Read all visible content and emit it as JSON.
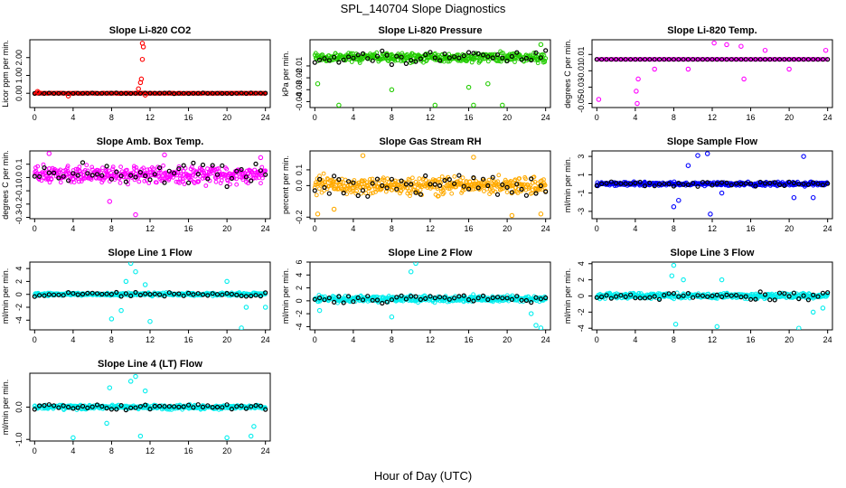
{
  "figure": {
    "title": "SPL_140704  Slope Diagnostics",
    "xlabel": "Hour of Day (UTC)"
  },
  "colors": {
    "overlay": "#000000",
    "red": "#ff0000",
    "green": "#22cc00",
    "magenta": "#ff00ff",
    "orange": "#ffaa00",
    "blue": "#0000ff",
    "cyan": "#00eeee"
  },
  "chart_data": [
    {
      "type": "scatter",
      "title": "Slope Li-820 CO2",
      "ylabel": "Licor ppm per min.",
      "color": "#ff0000",
      "xlim": [
        -0.5,
        24.5
      ],
      "ylim": [
        -0.8,
        3.0
      ],
      "xticks": [
        0,
        4,
        8,
        12,
        16,
        20,
        24
      ],
      "yticks": [
        0,
        1,
        2
      ],
      "ytick_labels": [
        "0.00",
        "1.00",
        "2.00"
      ],
      "baseline": 0.0,
      "spread": 0.02,
      "outliers": [
        [
          0.3,
          0.1
        ],
        [
          0.4,
          0.05
        ],
        [
          3.5,
          -0.15
        ],
        [
          10.8,
          0.25
        ],
        [
          11.0,
          0.6
        ],
        [
          11.1,
          0.8
        ],
        [
          11.2,
          1.9
        ],
        [
          11.2,
          2.8
        ],
        [
          11.3,
          2.6
        ],
        [
          11.5,
          -0.1
        ]
      ]
    },
    {
      "type": "scatter",
      "title": "Slope Li-820 Pressure",
      "ylabel": "kPa per min.",
      "color": "#22cc00",
      "xlim": [
        -0.5,
        24.5
      ],
      "ylim": [
        -0.045,
        0.012
      ],
      "xticks": [
        0,
        4,
        8,
        12,
        16,
        20,
        24
      ],
      "yticks": [
        -0.04,
        -0.03,
        -0.02,
        -0.01
      ],
      "ytick_labels": [
        "-0.04",
        "-0.03",
        "-0.02",
        "-0.01"
      ],
      "baseline": -0.003,
      "spread": 0.006,
      "outliers": [
        [
          0.3,
          -0.025
        ],
        [
          2.5,
          -0.043
        ],
        [
          8.0,
          -0.03
        ],
        [
          12.5,
          -0.043
        ],
        [
          16.5,
          -0.043
        ],
        [
          19.5,
          -0.043
        ],
        [
          23.5,
          0.008
        ],
        [
          16,
          -0.028
        ],
        [
          18,
          -0.025
        ]
      ]
    },
    {
      "type": "scatter",
      "title": "Slope Li-820 Temp.",
      "ylabel": "degrees C per min.",
      "color": "#ff00ff",
      "xlim": [
        -0.5,
        24.5
      ],
      "ylim": [
        -0.055,
        0.028
      ],
      "xticks": [
        0,
        4,
        8,
        12,
        16,
        20,
        24
      ],
      "yticks": [
        -0.05,
        -0.03,
        -0.01,
        0.01
      ],
      "ytick_labels": [
        "-0.05",
        "-0.03",
        "-0.01",
        "0.01"
      ],
      "baseline": 0.004,
      "spread": 0.0,
      "outliers": [
        [
          0.2,
          -0.045
        ],
        [
          4.1,
          -0.035
        ],
        [
          4.2,
          -0.05
        ],
        [
          4.3,
          -0.02
        ],
        [
          12.2,
          0.024
        ],
        [
          13.5,
          0.022
        ],
        [
          15.0,
          0.02
        ],
        [
          15.3,
          -0.02
        ],
        [
          17.5,
          0.015
        ],
        [
          20.0,
          -0.008
        ],
        [
          23.8,
          0.015
        ],
        [
          9.5,
          -0.008
        ],
        [
          6.0,
          -0.008
        ]
      ]
    },
    {
      "type": "scatter",
      "title": "Slope Amb. Box Temp.",
      "ylabel": "degrees C per min.",
      "color": "#ff00ff",
      "xlim": [
        -0.5,
        24.5
      ],
      "ylim": [
        -0.31,
        0.2
      ],
      "xticks": [
        0,
        4,
        8,
        12,
        16,
        20,
        24
      ],
      "yticks": [
        -0.3,
        -0.2,
        -0.1,
        0.0,
        0.1
      ],
      "ytick_labels": [
        "-0.3",
        "-0.2",
        "-0.1",
        "0.0",
        "0.1"
      ],
      "baseline": 0.02,
      "spread": 0.09,
      "outliers": [
        [
          10.5,
          -0.28
        ],
        [
          7.8,
          -0.18
        ],
        [
          1.5,
          0.18
        ],
        [
          13.5,
          0.17
        ],
        [
          23.5,
          0.15
        ]
      ]
    },
    {
      "type": "scatter",
      "title": "Slope Gas Stream RH",
      "ylabel": "percent per min.",
      "color": "#ffaa00",
      "xlim": [
        -0.5,
        24.5
      ],
      "ylim": [
        -0.21,
        0.22
      ],
      "xticks": [
        0,
        4,
        8,
        12,
        16,
        20,
        24
      ],
      "yticks": [
        -0.2,
        0.0,
        0.1
      ],
      "ytick_labels": [
        "-0.2",
        "0.0",
        "0.1"
      ],
      "baseline": 0.0,
      "spread": 0.08,
      "outliers": [
        [
          0.3,
          -0.18
        ],
        [
          2.0,
          -0.15
        ],
        [
          5.0,
          0.19
        ],
        [
          16.5,
          0.18
        ],
        [
          20.5,
          -0.19
        ],
        [
          23.5,
          -0.18
        ]
      ]
    },
    {
      "type": "scatter",
      "title": "Slope Sample Flow",
      "ylabel": "ml/min per min.",
      "color": "#0000ff",
      "xlim": [
        -0.5,
        24.5
      ],
      "ylim": [
        -3.8,
        3.6
      ],
      "xticks": [
        0,
        4,
        8,
        12,
        16,
        20,
        24
      ],
      "yticks": [
        -3,
        -1,
        1,
        3
      ],
      "ytick_labels": [
        "-3",
        "-1",
        "1",
        "3"
      ],
      "baseline": 0.0,
      "spread": 0.3,
      "outliers": [
        [
          10.5,
          3.1
        ],
        [
          11.5,
          3.3
        ],
        [
          8.5,
          -1.8
        ],
        [
          11.8,
          -3.3
        ],
        [
          9.5,
          2.0
        ],
        [
          8.0,
          -2.5
        ],
        [
          21.5,
          3.0
        ],
        [
          20.5,
          -1.5
        ],
        [
          22.5,
          -1.5
        ],
        [
          13.0,
          -1.0
        ]
      ]
    },
    {
      "type": "scatter",
      "title": "Slope Line 1 Flow",
      "ylabel": "ml/min per min.",
      "color": "#00eeee",
      "xlim": [
        -0.5,
        24.5
      ],
      "ylim": [
        -5.5,
        5.0
      ],
      "xticks": [
        0,
        4,
        8,
        12,
        16,
        20,
        24
      ],
      "yticks": [
        -4,
        -2,
        0,
        2,
        4
      ],
      "ytick_labels": [
        "-4",
        "-2",
        "0",
        "2",
        "4"
      ],
      "baseline": 0.0,
      "spread": 0.35,
      "outliers": [
        [
          10.0,
          4.8
        ],
        [
          10.5,
          3.5
        ],
        [
          9.5,
          2.0
        ],
        [
          11.5,
          1.5
        ],
        [
          12.0,
          -4.2
        ],
        [
          8.0,
          -3.8
        ],
        [
          21.5,
          -5.2
        ],
        [
          22.0,
          -2.0
        ],
        [
          24.0,
          -2.0
        ],
        [
          9.0,
          -2.5
        ],
        [
          20.0,
          2.0
        ]
      ]
    },
    {
      "type": "scatter",
      "title": "Slope Line 2 Flow",
      "ylabel": "ml/min per min.",
      "color": "#00eeee",
      "xlim": [
        -0.5,
        24.5
      ],
      "ylim": [
        -4.5,
        6.0
      ],
      "xticks": [
        0,
        4,
        8,
        12,
        16,
        20,
        24
      ],
      "yticks": [
        -4,
        -2,
        0,
        2,
        4,
        6
      ],
      "ytick_labels": [
        "-4",
        "-2",
        "0",
        "2",
        "4",
        "6"
      ],
      "baseline": 0.3,
      "spread": 0.7,
      "outliers": [
        [
          10.5,
          5.8
        ],
        [
          10.0,
          4.5
        ],
        [
          23.5,
          -4.2
        ],
        [
          23.0,
          -3.8
        ],
        [
          8.0,
          -2.5
        ],
        [
          22.5,
          -2.0
        ],
        [
          0.5,
          -1.5
        ]
      ]
    },
    {
      "type": "scatter",
      "title": "Slope Line 3 Flow",
      "ylabel": "ml/min per min.",
      "color": "#00eeee",
      "xlim": [
        -0.5,
        24.5
      ],
      "ylim": [
        -4.2,
        4.2
      ],
      "xticks": [
        0,
        4,
        8,
        12,
        16,
        20,
        24
      ],
      "yticks": [
        -4,
        -2,
        0,
        2,
        4
      ],
      "ytick_labels": [
        "-4",
        "-2",
        "0",
        "2",
        "4"
      ],
      "baseline": 0.0,
      "spread": 0.5,
      "outliers": [
        [
          8.0,
          3.8
        ],
        [
          8.2,
          -3.5
        ],
        [
          9.0,
          2.0
        ],
        [
          12.5,
          -3.8
        ],
        [
          21.0,
          -4.0
        ],
        [
          22.5,
          -2.0
        ],
        [
          23.5,
          -1.5
        ],
        [
          7.8,
          2.5
        ],
        [
          13.0,
          2.0
        ]
      ]
    },
    {
      "type": "scatter",
      "title": "Slope Line 4 (LT) Flow",
      "ylabel": "ml/min per min.",
      "color": "#00eeee",
      "xlim": [
        -0.5,
        24.5
      ],
      "ylim": [
        -1.05,
        1.05
      ],
      "xticks": [
        0,
        4,
        8,
        12,
        16,
        20,
        24
      ],
      "yticks": [
        -1.0,
        0.0
      ],
      "ytick_labels": [
        "-1.0",
        "0.0"
      ],
      "baseline": 0.0,
      "spread": 0.1,
      "outliers": [
        [
          10.5,
          0.95
        ],
        [
          10.0,
          0.8
        ],
        [
          4.0,
          -0.95
        ],
        [
          11.0,
          -0.9
        ],
        [
          20.0,
          -0.95
        ],
        [
          22.5,
          -0.9
        ],
        [
          7.5,
          -0.5
        ],
        [
          7.8,
          0.6
        ],
        [
          22.8,
          -0.6
        ],
        [
          11.5,
          0.5
        ]
      ]
    }
  ]
}
